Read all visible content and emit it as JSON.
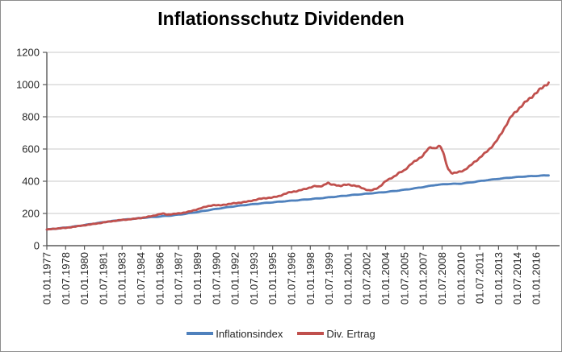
{
  "chart_data": {
    "type": "line",
    "title": "Inflationsschutz Dividenden",
    "xlabel": "",
    "ylabel": "",
    "ylim": [
      0,
      1200
    ],
    "ytick_step": 200,
    "ytick_labels": [
      "0",
      "200",
      "400",
      "600",
      "800",
      "1000",
      "1200"
    ],
    "xtick_labels": [
      "01.01.1977",
      "01.07.1978",
      "01.01.1980",
      "01.07.1981",
      "01.01.1983",
      "01.07.1984",
      "01.01.1986",
      "01.07.1987",
      "01.01.1989",
      "01.07.1990",
      "01.01.1992",
      "01.07.1993",
      "01.01.1995",
      "01.07.1996",
      "01.01.1998",
      "01.07.1999",
      "01.01.2001",
      "01.07.2002",
      "01.01.2004",
      "01.07.2005",
      "01.01.2007",
      "01.07.2008",
      "01.01.2010",
      "01.07.2011",
      "01.01.2013",
      "01.07.2014",
      "01.01.2016"
    ],
    "xtick_interval_months": 18,
    "grid": "horizontal",
    "legend_position": "bottom",
    "colors": {
      "grid": "#c9c9c9",
      "axis": "#595959",
      "text": "#262626",
      "series_blue": "#4F81BD",
      "series_red": "#C0504D"
    },
    "series": [
      {
        "name": "Inflationsindex",
        "color": "#4F81BD",
        "points": [
          [
            1977,
            100
          ],
          [
            1978,
            108
          ],
          [
            1979,
            117
          ],
          [
            1980,
            128
          ],
          [
            1981,
            140
          ],
          [
            1982,
            151
          ],
          [
            1983,
            160
          ],
          [
            1984,
            168
          ],
          [
            1985,
            175
          ],
          [
            1986,
            181
          ],
          [
            1987,
            188
          ],
          [
            1988,
            197
          ],
          [
            1989,
            209
          ],
          [
            1990,
            222
          ],
          [
            1991,
            234
          ],
          [
            1992,
            245
          ],
          [
            1993,
            254
          ],
          [
            1994,
            262
          ],
          [
            1995,
            269
          ],
          [
            1996,
            276
          ],
          [
            1997,
            282
          ],
          [
            1998,
            289
          ],
          [
            1999,
            296
          ],
          [
            2000,
            304
          ],
          [
            2001,
            312
          ],
          [
            2002,
            319
          ],
          [
            2003,
            326
          ],
          [
            2004,
            333
          ],
          [
            2005,
            342
          ],
          [
            2006,
            352
          ],
          [
            2007,
            364
          ],
          [
            2008,
            377
          ],
          [
            2009,
            383
          ],
          [
            2010,
            385
          ],
          [
            2011,
            395
          ],
          [
            2012,
            406
          ],
          [
            2013,
            415
          ],
          [
            2014,
            423
          ],
          [
            2015,
            429
          ],
          [
            2016,
            433
          ],
          [
            2017,
            437
          ]
        ]
      },
      {
        "name": "Div. Ertrag",
        "color": "#C0504D",
        "points": [
          [
            1977,
            100
          ],
          [
            1977.5,
            104
          ],
          [
            1978,
            108
          ],
          [
            1978.5,
            110
          ],
          [
            1979,
            116
          ],
          [
            1979.5,
            121
          ],
          [
            1980,
            127
          ],
          [
            1980.5,
            132
          ],
          [
            1981,
            138
          ],
          [
            1981.5,
            144
          ],
          [
            1982,
            150
          ],
          [
            1982.5,
            155
          ],
          [
            1983,
            160
          ],
          [
            1983.5,
            163
          ],
          [
            1984,
            167
          ],
          [
            1984.5,
            172
          ],
          [
            1985,
            178
          ],
          [
            1985.5,
            186
          ],
          [
            1986,
            196
          ],
          [
            1986.3,
            199
          ],
          [
            1986.6,
            193
          ],
          [
            1987,
            196
          ],
          [
            1987.5,
            200
          ],
          [
            1988,
            206
          ],
          [
            1988.5,
            214
          ],
          [
            1989,
            226
          ],
          [
            1989.5,
            238
          ],
          [
            1990,
            248
          ],
          [
            1990.3,
            252
          ],
          [
            1990.8,
            250
          ],
          [
            1991,
            253
          ],
          [
            1991.5,
            258
          ],
          [
            1992,
            264
          ],
          [
            1992.5,
            268
          ],
          [
            1993,
            274
          ],
          [
            1993.5,
            282
          ],
          [
            1994,
            291
          ],
          [
            1994.5,
            296
          ],
          [
            1995,
            299
          ],
          [
            1995.5,
            308
          ],
          [
            1996,
            322
          ],
          [
            1996.4,
            332
          ],
          [
            1997,
            340
          ],
          [
            1997.5,
            350
          ],
          [
            1998,
            362
          ],
          [
            1998.4,
            370
          ],
          [
            1998.7,
            366
          ],
          [
            1999,
            374
          ],
          [
            1999.4,
            390
          ],
          [
            1999.6,
            380
          ],
          [
            2000,
            378
          ],
          [
            2000.4,
            370
          ],
          [
            2000.7,
            376
          ],
          [
            2001,
            380
          ],
          [
            2001.4,
            374
          ],
          [
            2001.8,
            368
          ],
          [
            2002,
            362
          ],
          [
            2002.4,
            350
          ],
          [
            2002.7,
            342
          ],
          [
            2003,
            346
          ],
          [
            2003.4,
            360
          ],
          [
            2003.7,
            378
          ],
          [
            2004,
            400
          ],
          [
            2004.4,
            418
          ],
          [
            2004.8,
            435
          ],
          [
            2005,
            448
          ],
          [
            2005.5,
            468
          ],
          [
            2006,
            505
          ],
          [
            2006.5,
            532
          ],
          [
            2007,
            562
          ],
          [
            2007.3,
            592
          ],
          [
            2007.6,
            612
          ],
          [
            2007.9,
            604
          ],
          [
            2008.2,
            618
          ],
          [
            2008.4,
            612
          ],
          [
            2008.6,
            575
          ],
          [
            2008.8,
            520
          ],
          [
            2009,
            475
          ],
          [
            2009.3,
            448
          ],
          [
            2009.6,
            452
          ],
          [
            2010,
            462
          ],
          [
            2010.3,
            470
          ],
          [
            2010.7,
            492
          ],
          [
            2011,
            515
          ],
          [
            2011.5,
            545
          ],
          [
            2012,
            580
          ],
          [
            2012.3,
            602
          ],
          [
            2012.7,
            635
          ],
          [
            2013,
            668
          ],
          [
            2013.5,
            735
          ],
          [
            2014,
            800
          ],
          [
            2014.5,
            842
          ],
          [
            2015,
            880
          ],
          [
            2015.5,
            915
          ],
          [
            2016,
            948
          ],
          [
            2016.5,
            982
          ],
          [
            2017,
            1012
          ]
        ]
      }
    ]
  }
}
